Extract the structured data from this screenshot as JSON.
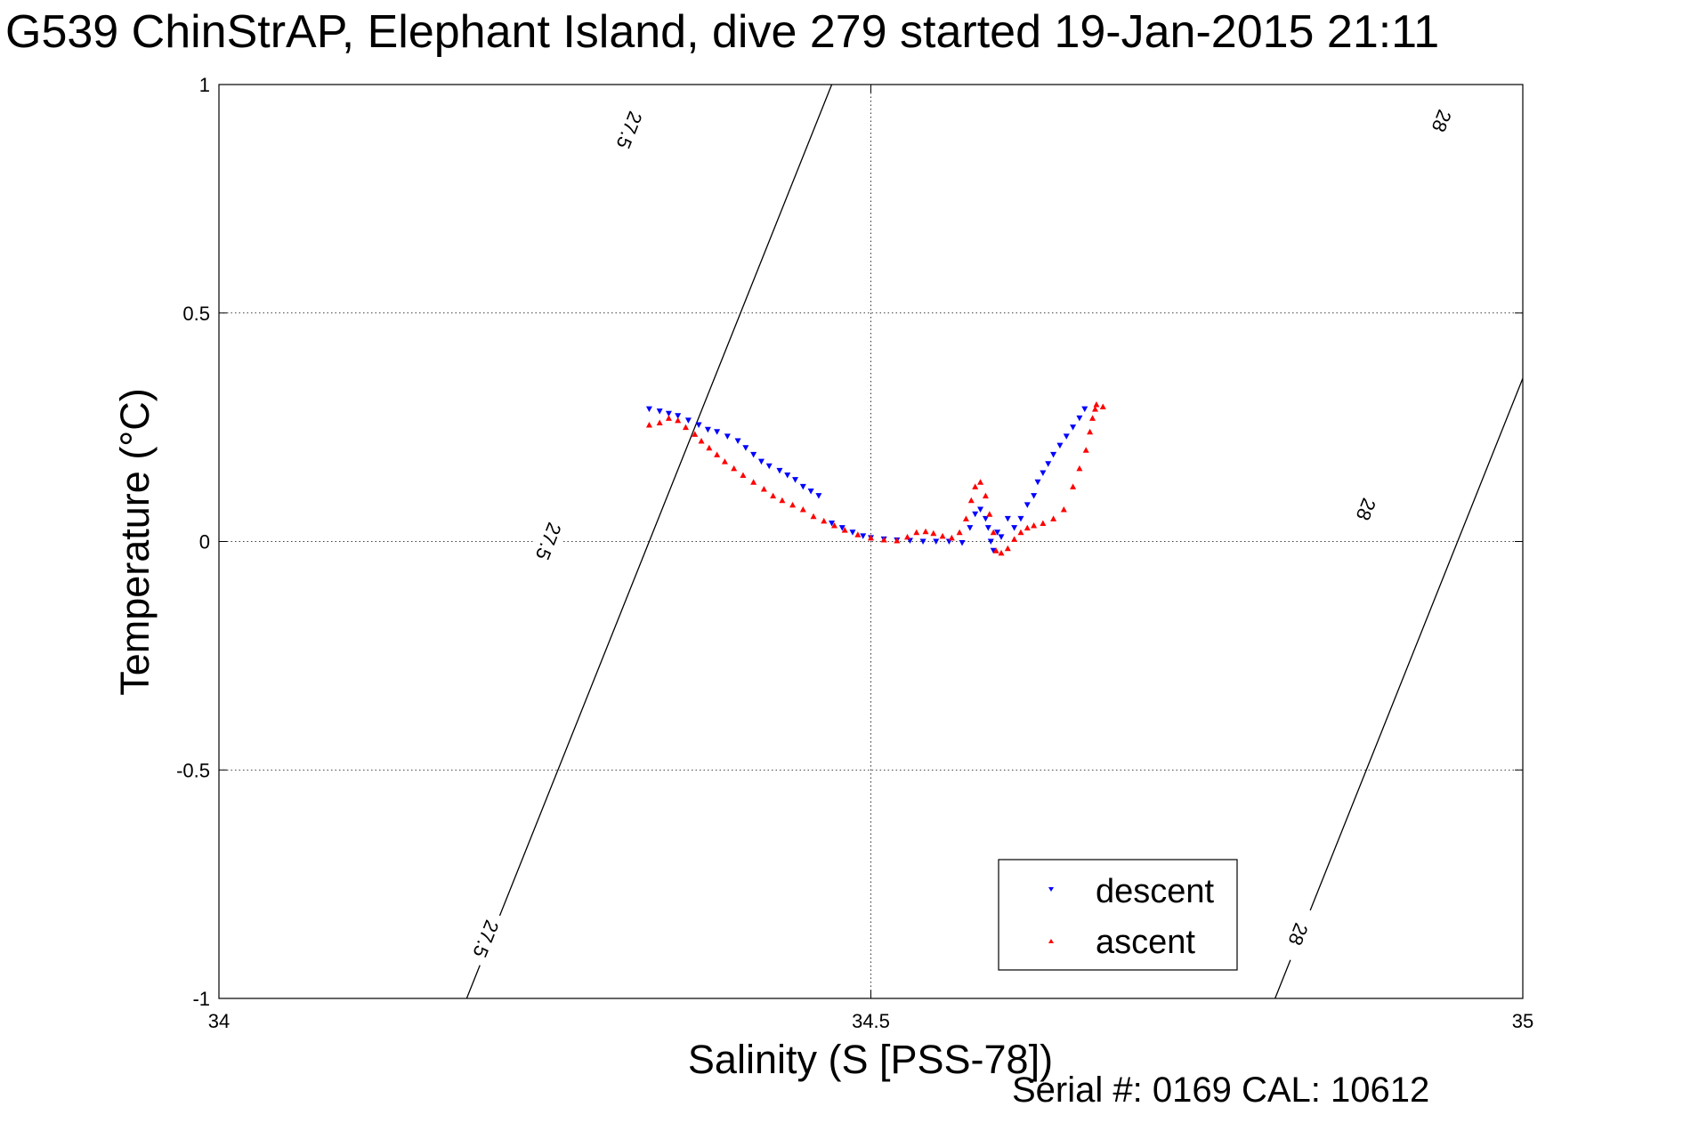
{
  "title": "G539 ChinStrAP, Elephant Island, dive 279 started 19-Jan-2015 21:11",
  "footer": "Serial #: 0169 CAL: 10612",
  "chart_data": {
    "type": "scatter",
    "xlabel": "Salinity (S [PSS-78])",
    "ylabel": "Temperature (°C)",
    "xlim": [
      34,
      35
    ],
    "ylim": [
      -1,
      1
    ],
    "xticks": [
      34,
      34.5,
      35
    ],
    "xtick_labels": [
      "34",
      "34.5",
      "35"
    ],
    "yticks": [
      -1,
      -0.5,
      0,
      0.5,
      1
    ],
    "ytick_labels": [
      "-1",
      "-0.5",
      "0",
      "0.5",
      "1"
    ],
    "grid": true,
    "legend_position": "bottom-right",
    "colors": {
      "descent": "#0000ff",
      "ascent": "#ff0000",
      "contour": "#000000"
    },
    "contours": [
      {
        "label": "27.5",
        "line": [
          [
            34.19,
            -1
          ],
          [
            34.33,
            0
          ],
          [
            34.47,
            1
          ]
        ],
        "label_points": [
          [
            34.205,
            -0.87
          ],
          [
            34.253,
            0
          ],
          [
            34.315,
            0.9
          ]
        ]
      },
      {
        "label": "28",
        "line": [
          [
            34.81,
            -1
          ],
          [
            34.95,
            0
          ],
          [
            35.09,
            1
          ]
        ],
        "label_points": [
          [
            34.828,
            -0.86
          ],
          [
            34.88,
            0.07
          ],
          [
            34.938,
            0.92
          ]
        ]
      }
    ],
    "series": [
      {
        "name": "descent",
        "marker": "triangle-down",
        "points": [
          [
            34.33,
            0.29
          ],
          [
            34.338,
            0.285
          ],
          [
            34.345,
            0.28
          ],
          [
            34.352,
            0.275
          ],
          [
            34.36,
            0.265
          ],
          [
            34.368,
            0.255
          ],
          [
            34.375,
            0.245
          ],
          [
            34.382,
            0.24
          ],
          [
            34.39,
            0.23
          ],
          [
            34.398,
            0.22
          ],
          [
            34.404,
            0.205
          ],
          [
            34.41,
            0.19
          ],
          [
            34.416,
            0.175
          ],
          [
            34.422,
            0.165
          ],
          [
            34.43,
            0.155
          ],
          [
            34.436,
            0.145
          ],
          [
            34.442,
            0.135
          ],
          [
            34.448,
            0.12
          ],
          [
            34.454,
            0.11
          ],
          [
            34.46,
            0.1
          ],
          [
            34.47,
            0.04
          ],
          [
            34.478,
            0.03
          ],
          [
            34.486,
            0.02
          ],
          [
            34.494,
            0.012
          ],
          [
            34.5,
            0.008
          ],
          [
            34.51,
            0.005
          ],
          [
            34.52,
            0.003
          ],
          [
            34.53,
            0.002
          ],
          [
            34.54,
            0.0
          ],
          [
            34.55,
            0.0
          ],
          [
            34.56,
            0.0
          ],
          [
            34.57,
            -0.003
          ],
          [
            34.576,
            0.03
          ],
          [
            34.58,
            0.06
          ],
          [
            34.584,
            0.07
          ],
          [
            34.588,
            0.05
          ],
          [
            34.59,
            0.03
          ],
          [
            34.592,
            0.0
          ],
          [
            34.594,
            -0.02
          ],
          [
            34.597,
            0.02
          ],
          [
            34.6,
            0.01
          ],
          [
            34.605,
            0.05
          ],
          [
            34.61,
            0.03
          ],
          [
            34.615,
            0.05
          ],
          [
            34.62,
            0.08
          ],
          [
            34.625,
            0.1
          ],
          [
            34.628,
            0.13
          ],
          [
            34.632,
            0.15
          ],
          [
            34.636,
            0.17
          ],
          [
            34.64,
            0.19
          ],
          [
            34.645,
            0.21
          ],
          [
            34.65,
            0.23
          ],
          [
            34.655,
            0.25
          ],
          [
            34.66,
            0.27
          ],
          [
            34.664,
            0.29
          ]
        ]
      },
      {
        "name": "ascent",
        "marker": "triangle-up",
        "points": [
          [
            34.33,
            0.255
          ],
          [
            34.338,
            0.26
          ],
          [
            34.345,
            0.27
          ],
          [
            34.352,
            0.265
          ],
          [
            34.358,
            0.25
          ],
          [
            34.365,
            0.235
          ],
          [
            34.37,
            0.22
          ],
          [
            34.376,
            0.205
          ],
          [
            34.382,
            0.19
          ],
          [
            34.388,
            0.175
          ],
          [
            34.395,
            0.16
          ],
          [
            34.402,
            0.145
          ],
          [
            34.41,
            0.13
          ],
          [
            34.418,
            0.115
          ],
          [
            34.425,
            0.1
          ],
          [
            34.432,
            0.09
          ],
          [
            34.44,
            0.08
          ],
          [
            34.448,
            0.07
          ],
          [
            34.456,
            0.055
          ],
          [
            34.464,
            0.045
          ],
          [
            34.472,
            0.035
          ],
          [
            34.48,
            0.025
          ],
          [
            34.49,
            0.015
          ],
          [
            34.5,
            0.008
          ],
          [
            34.51,
            0.004
          ],
          [
            34.52,
            0.002
          ],
          [
            34.528,
            0.01
          ],
          [
            34.535,
            0.02
          ],
          [
            34.542,
            0.022
          ],
          [
            34.548,
            0.018
          ],
          [
            34.555,
            0.012
          ],
          [
            34.562,
            0.008
          ],
          [
            34.568,
            0.02
          ],
          [
            34.573,
            0.05
          ],
          [
            34.577,
            0.09
          ],
          [
            34.58,
            0.12
          ],
          [
            34.584,
            0.13
          ],
          [
            34.588,
            0.1
          ],
          [
            34.591,
            0.06
          ],
          [
            34.594,
            0.02
          ],
          [
            34.596,
            -0.02
          ],
          [
            34.6,
            -0.025
          ],
          [
            34.605,
            -0.015
          ],
          [
            34.61,
            0.005
          ],
          [
            34.615,
            0.02
          ],
          [
            34.62,
            0.03
          ],
          [
            34.625,
            0.035
          ],
          [
            34.632,
            0.04
          ],
          [
            34.64,
            0.05
          ],
          [
            34.648,
            0.07
          ],
          [
            34.655,
            0.12
          ],
          [
            34.66,
            0.16
          ],
          [
            34.665,
            0.2
          ],
          [
            34.668,
            0.24
          ],
          [
            34.67,
            0.27
          ],
          [
            34.672,
            0.29
          ],
          [
            34.673,
            0.3
          ],
          [
            34.678,
            0.295
          ]
        ]
      }
    ]
  }
}
